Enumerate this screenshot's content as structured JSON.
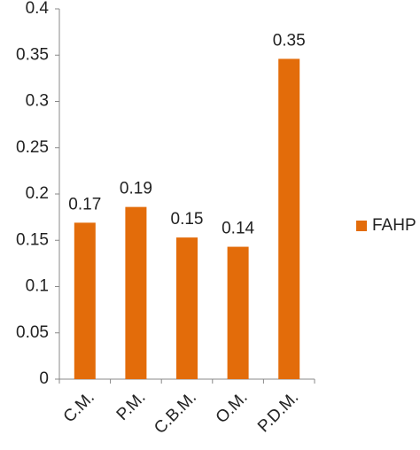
{
  "chart_data": {
    "type": "bar",
    "categories": [
      "C.M.",
      "P.M.",
      "C.B.M.",
      "O.M.",
      "P.D.M."
    ],
    "series": [
      {
        "name": "FAHP",
        "color": "#e36c0a",
        "values": [
          0.169,
          0.186,
          0.153,
          0.143,
          0.346
        ],
        "value_labels": [
          "0.17",
          "0.19",
          "0.15",
          "0.14",
          "0.35"
        ]
      }
    ],
    "ylim": [
      0,
      0.4
    ],
    "yticks": [
      0,
      0.05,
      0.1,
      0.15,
      0.2,
      0.25,
      0.3,
      0.35,
      0.4
    ],
    "grid": false,
    "legend": "right"
  }
}
